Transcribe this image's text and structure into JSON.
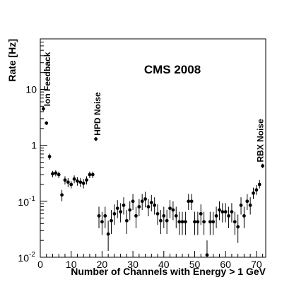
{
  "chart_data": {
    "type": "scatter",
    "title": "CMS 2008",
    "xlabel": "Number of Channels with Energy > 1 GeV",
    "ylabel": "Rate [Hz]",
    "xlim": [
      0,
      73
    ],
    "ylim": [
      0.01,
      80
    ],
    "y_scale": "log",
    "grid": false,
    "x_ticks": [
      {
        "value": 0,
        "label": "0"
      },
      {
        "value": 10,
        "label": "10"
      },
      {
        "value": 20,
        "label": "20"
      },
      {
        "value": 30,
        "label": "30"
      },
      {
        "value": 40,
        "label": "40"
      },
      {
        "value": 50,
        "label": "50"
      },
      {
        "value": 60,
        "label": "60"
      },
      {
        "value": 70,
        "label": "70"
      }
    ],
    "y_ticks": [
      {
        "value": 0.01,
        "label": "10",
        "exp": "-2"
      },
      {
        "value": 0.1,
        "label": "10",
        "exp": "-1"
      },
      {
        "value": 1,
        "label": "1",
        "exp": ""
      },
      {
        "value": 10,
        "label": "10",
        "exp": ""
      }
    ],
    "annotations": [
      {
        "text": "Ion Feedback",
        "x": 2.3,
        "y": 5.0
      },
      {
        "text": "HPD Noise",
        "x": 18.5,
        "y": 1.5
      },
      {
        "text": "RBX Noise",
        "x": 71.3,
        "y": 0.5
      }
    ],
    "series": [
      {
        "name": "",
        "x": [
          1,
          2,
          3,
          4,
          5,
          6,
          7,
          8,
          9,
          10,
          11,
          12,
          13,
          14,
          15,
          16,
          17,
          18,
          19,
          20,
          21,
          22,
          23,
          24,
          25,
          26,
          27,
          28,
          29,
          30,
          31,
          32,
          33,
          34,
          35,
          36,
          37,
          38,
          39,
          40,
          41,
          42,
          43,
          44,
          45,
          46,
          47,
          48,
          49,
          50,
          51,
          52,
          53,
          54,
          55,
          56,
          57,
          58,
          59,
          60,
          61,
          62,
          63,
          64,
          65,
          66,
          67,
          68,
          69,
          70,
          71,
          72
        ],
        "y": [
          4.5,
          2.5,
          0.63,
          0.31,
          0.32,
          0.3,
          0.13,
          0.24,
          0.22,
          0.2,
          0.25,
          0.23,
          0.22,
          0.21,
          0.24,
          0.3,
          0.3,
          1.3,
          0.055,
          0.043,
          0.055,
          0.026,
          0.045,
          0.06,
          0.075,
          0.065,
          0.085,
          0.045,
          0.07,
          0.1,
          0.055,
          0.08,
          0.1,
          0.11,
          0.08,
          0.095,
          0.085,
          0.06,
          0.045,
          0.055,
          0.045,
          0.075,
          0.07,
          0.055,
          0.043,
          0.043,
          0.043,
          0.1,
          0.1,
          0.043,
          0.043,
          0.06,
          0.043,
          0.011,
          0.043,
          0.043,
          0.055,
          0.07,
          0.065,
          0.065,
          0.055,
          0.065,
          0.043,
          0.035,
          0.085,
          0.055,
          0.1,
          0.085,
          0.14,
          0.16,
          0.2,
          0.43
        ],
        "y_low": [
          4.1,
          2.3,
          0.55,
          0.27,
          0.28,
          0.26,
          0.1,
          0.2,
          0.18,
          0.17,
          0.21,
          0.19,
          0.18,
          0.17,
          0.2,
          0.26,
          0.26,
          1.2,
          0.033,
          0.025,
          0.033,
          0.013,
          0.026,
          0.038,
          0.05,
          0.042,
          0.058,
          0.026,
          0.046,
          0.07,
          0.033,
          0.054,
          0.07,
          0.078,
          0.054,
          0.066,
          0.058,
          0.038,
          0.026,
          0.033,
          0.026,
          0.05,
          0.046,
          0.033,
          0.025,
          0.025,
          0.025,
          0.07,
          0.07,
          0.025,
          0.025,
          0.038,
          0.025,
          0.01,
          0.025,
          0.025,
          0.033,
          0.046,
          0.042,
          0.042,
          0.033,
          0.042,
          0.025,
          0.018,
          0.058,
          0.033,
          0.07,
          0.058,
          0.11,
          0.13,
          0.17,
          0.39
        ],
        "y_high": [
          4.9,
          2.7,
          0.71,
          0.35,
          0.36,
          0.34,
          0.16,
          0.28,
          0.26,
          0.23,
          0.29,
          0.27,
          0.26,
          0.25,
          0.28,
          0.34,
          0.34,
          1.4,
          0.08,
          0.065,
          0.08,
          0.045,
          0.07,
          0.088,
          0.105,
          0.093,
          0.118,
          0.07,
          0.1,
          0.135,
          0.08,
          0.11,
          0.135,
          0.148,
          0.11,
          0.13,
          0.118,
          0.088,
          0.07,
          0.08,
          0.07,
          0.105,
          0.1,
          0.08,
          0.065,
          0.065,
          0.065,
          0.135,
          0.135,
          0.065,
          0.065,
          0.088,
          0.065,
          0.02,
          0.065,
          0.065,
          0.08,
          0.1,
          0.093,
          0.093,
          0.08,
          0.093,
          0.065,
          0.058,
          0.118,
          0.08,
          0.135,
          0.118,
          0.175,
          0.195,
          0.24,
          0.47
        ]
      }
    ]
  }
}
